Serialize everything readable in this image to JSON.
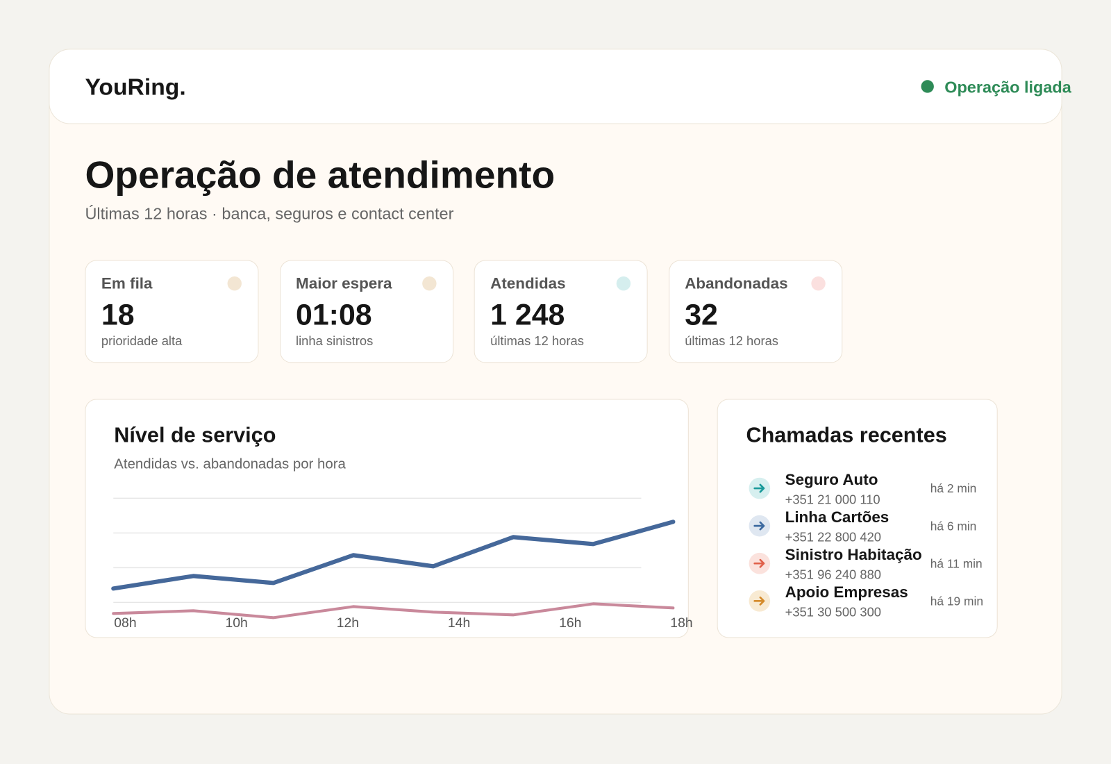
{
  "header": {
    "logo": "YouRing.",
    "status": "Operação ligada"
  },
  "title": "Operação de atendimento",
  "subtitle": "Últimas 12 horas · banca, seguros e contact center",
  "kpis": [
    {
      "label": "Em fila",
      "value": "18",
      "note": "prioridade alta",
      "color": "#f3e6d3"
    },
    {
      "label": "Maior espera",
      "value": "01:08",
      "note": "linha sinistros",
      "color": "#f3e6d3"
    },
    {
      "label": "Atendidas",
      "value": "1 248",
      "note": "últimas 12 horas",
      "color": "#d5eeee"
    },
    {
      "label": "Abandonadas",
      "value": "32",
      "note": "últimas 12 horas",
      "color": "#fbe0df"
    }
  ],
  "chart_card": {
    "title": "Nível de serviço",
    "subtitle": "Atendidas vs. abandonadas por hora"
  },
  "chart_data": {
    "type": "line",
    "x_labels": [
      "08h",
      "10h",
      "12h",
      "14h",
      "16h",
      "18h"
    ],
    "ylim": [
      0,
      100
    ],
    "yticks": [
      25,
      50,
      75,
      100
    ],
    "grid": true,
    "series": [
      {
        "color": "#45689a",
        "values": [
          35,
          44,
          39,
          59,
          51,
          72,
          67,
          83
        ]
      },
      {
        "color": "#c9899b",
        "values": [
          17,
          19,
          14,
          22,
          18,
          16,
          24,
          21
        ]
      }
    ]
  },
  "recent": {
    "title": "Chamadas recentes",
    "calls": [
      {
        "name": "Seguro Auto",
        "phone": "+351 21 000 110",
        "time": "há 2 min",
        "color": "#1a9a9a",
        "bg": "#d6efef"
      },
      {
        "name": "Linha Cartões",
        "phone": "+351 22 800 420",
        "time": "há 6 min",
        "color": "#3d6aa0",
        "bg": "#dfe7f1"
      },
      {
        "name": "Sinistro Habitação",
        "phone": "+351 96 240 880",
        "time": "há 11 min",
        "color": "#e0604a",
        "bg": "#fbe2dd"
      },
      {
        "name": "Apoio Empresas",
        "phone": "+351 30 500 300",
        "time": "há 19 min",
        "color": "#d48a2a",
        "bg": "#f8ead2"
      }
    ]
  }
}
